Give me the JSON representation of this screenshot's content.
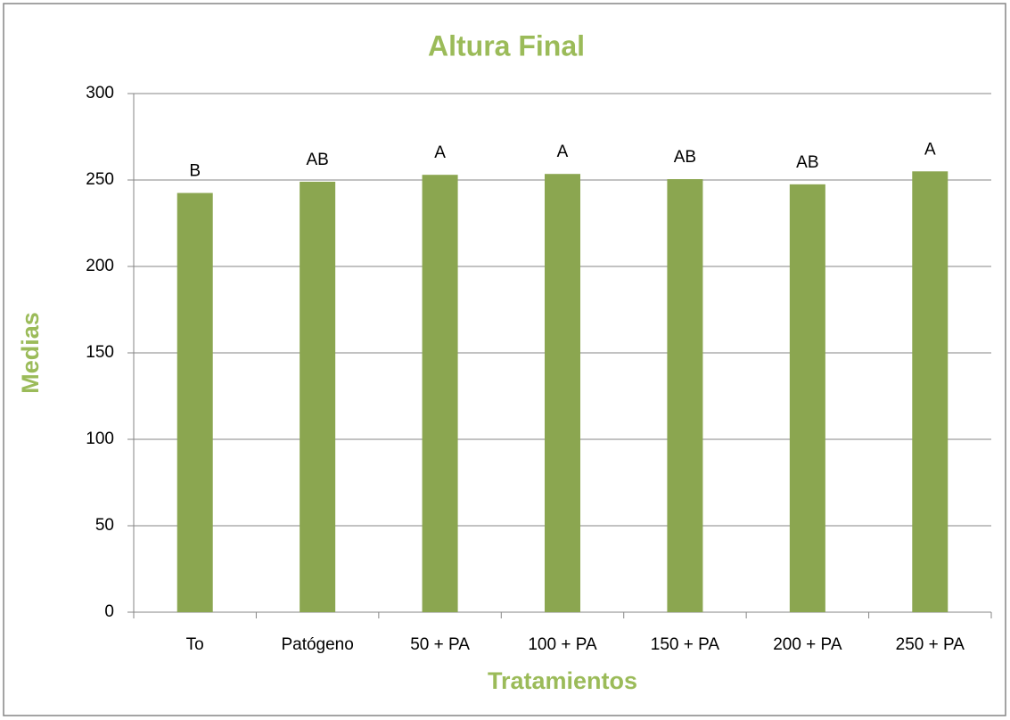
{
  "chart_data": {
    "type": "bar",
    "title": "Altura Final",
    "x_label": "Tratamientos",
    "y_label": "Medias",
    "categories": [
      "To",
      "Patógeno",
      "50 + PA",
      "100 + PA",
      "150 + PA",
      "200 + PA",
      "250 + PA"
    ],
    "values": [
      242.5,
      249,
      253,
      253.5,
      250.5,
      247.5,
      255
    ],
    "annotations": [
      "B",
      "AB",
      "A",
      "A",
      "AB",
      "AB",
      "A"
    ],
    "color": "#8ba650",
    "title_color": "#9bbb59",
    "ylim": [
      0,
      300
    ],
    "yticks": [
      0,
      50,
      100,
      150,
      200,
      250,
      300
    ],
    "grid": true
  }
}
